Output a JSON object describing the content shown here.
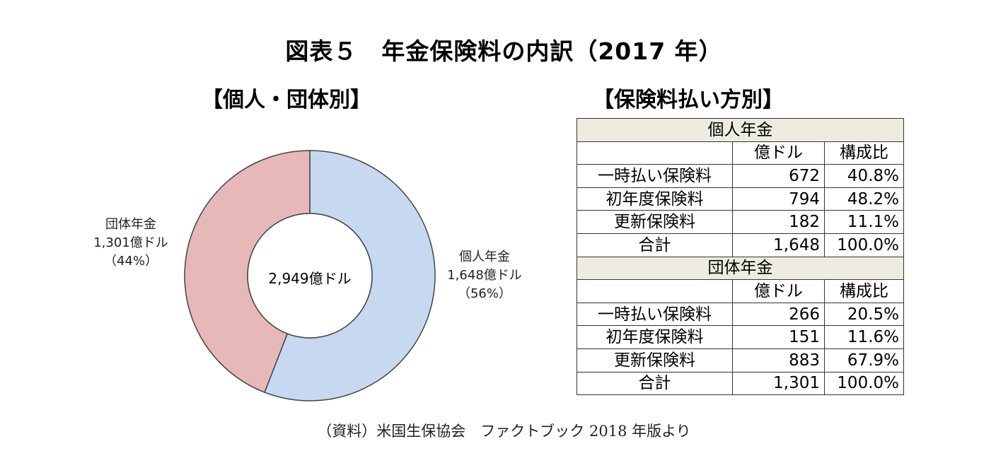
{
  "title": "図表５　年金保険料の内訳（2017 年）",
  "left_panel": {
    "subtitle": "【個人・団体別】",
    "center_label": "2,949億ドル",
    "slices": [
      {
        "name": "個人年金",
        "value_label": "1,648億ドル",
        "pct_label": "（56%）"
      },
      {
        "name": "団体年金",
        "value_label": "1,301億ドル",
        "pct_label": "（44%）"
      }
    ]
  },
  "right_panel": {
    "subtitle": "【保険料払い方別】",
    "col_headers": [
      "億ドル",
      "構成比"
    ],
    "sections": [
      {
        "name": "個人年金",
        "rows": [
          {
            "label": "一時払い保険料",
            "amount": "672",
            "share": "40.8%"
          },
          {
            "label": "初年度保険料",
            "amount": "794",
            "share": "48.2%"
          },
          {
            "label": "更新保険料",
            "amount": "182",
            "share": "11.1%"
          },
          {
            "label": "合計",
            "amount": "1,648",
            "share": "100.0%"
          }
        ]
      },
      {
        "name": "団体年金",
        "rows": [
          {
            "label": "一時払い保険料",
            "amount": "266",
            "share": "20.5%"
          },
          {
            "label": "初年度保険料",
            "amount": "151",
            "share": "11.6%"
          },
          {
            "label": "更新保険料",
            "amount": "883",
            "share": "67.9%"
          },
          {
            "label": "合計",
            "amount": "1,301",
            "share": "100.0%"
          }
        ]
      }
    ]
  },
  "source": "（資料）米国生保協会　ファクトブック 2018 年版より",
  "chart_data": [
    {
      "type": "pie",
      "style": "donut",
      "title": "【個人・団体別】",
      "center_text": "2,949億ドル",
      "categories": [
        "個人年金",
        "団体年金"
      ],
      "values": [
        1648,
        1301
      ],
      "percent": [
        56,
        44
      ],
      "colors": [
        "#c6d9f1",
        "#e6b9b8"
      ],
      "edge_color": "#444444"
    },
    {
      "type": "table",
      "title": "【保険料払い方別】",
      "columns": [
        "",
        "億ドル",
        "構成比"
      ],
      "sections": [
        {
          "name": "個人年金",
          "rows": [
            [
              "一時払い保険料",
              672,
              "40.8%"
            ],
            [
              "初年度保険料",
              794,
              "48.2%"
            ],
            [
              "更新保険料",
              182,
              "11.1%"
            ],
            [
              "合計",
              1648,
              "100.0%"
            ]
          ]
        },
        {
          "name": "団体年金",
          "rows": [
            [
              "一時払い保険料",
              266,
              "20.5%"
            ],
            [
              "初年度保険料",
              151,
              "11.6%"
            ],
            [
              "更新保険料",
              883,
              "67.9%"
            ],
            [
              "合計",
              1301,
              "100.0%"
            ]
          ]
        }
      ]
    }
  ]
}
